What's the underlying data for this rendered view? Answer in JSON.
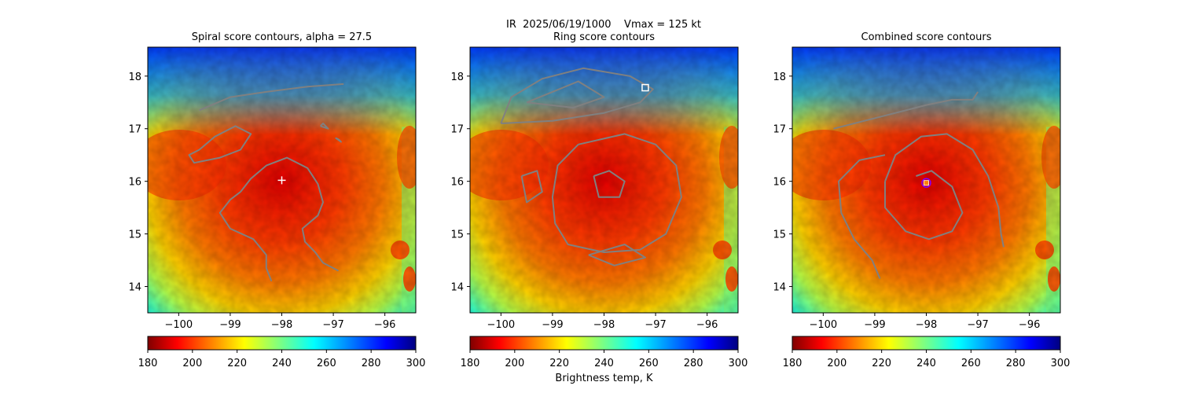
{
  "suptitle": "IR  2025/06/19/1000    Vmax = 125 kt",
  "colors": {
    "contour": "#808080",
    "cross": "#ffffff",
    "ring_marker": "#ffffff",
    "combined_marker_ring": "#8000ff",
    "combined_marker_fill": "#ff8000"
  },
  "chart_data": [
    {
      "type": "heatmap",
      "title": "Spiral score contours, alpha = 27.5",
      "xlim": [
        -100.6,
        -95.4
      ],
      "ylim": [
        13.5,
        18.55
      ],
      "xticks": [
        -100,
        -99,
        -98,
        -97,
        -96
      ],
      "yticks": [
        14,
        15,
        16,
        17,
        18
      ],
      "colorbar": {
        "range": [
          180,
          300
        ],
        "ticks": [
          180,
          200,
          220,
          240,
          260,
          280,
          300
        ],
        "label": ""
      },
      "center_marker": {
        "shape": "plus",
        "x": -98.0,
        "y": 16.02
      },
      "contours": [
        [
          [
            -99.6,
            17.35
          ],
          [
            -99.0,
            17.6
          ],
          [
            -98.3,
            17.7
          ],
          [
            -97.5,
            17.8
          ],
          [
            -96.8,
            17.85
          ]
        ],
        [
          [
            -99.6,
            16.6
          ],
          [
            -99.3,
            16.85
          ],
          [
            -98.9,
            17.05
          ],
          [
            -98.6,
            16.9
          ],
          [
            -98.8,
            16.6
          ],
          [
            -99.2,
            16.45
          ],
          [
            -99.7,
            16.35
          ],
          [
            -99.8,
            16.5
          ],
          [
            -99.6,
            16.6
          ]
        ],
        [
          [
            -98.8,
            15.8
          ],
          [
            -98.6,
            16.05
          ],
          [
            -98.3,
            16.3
          ],
          [
            -97.9,
            16.45
          ],
          [
            -97.5,
            16.25
          ],
          [
            -97.3,
            15.95
          ],
          [
            -97.2,
            15.6
          ],
          [
            -97.3,
            15.35
          ],
          [
            -97.6,
            15.1
          ],
          [
            -97.55,
            14.85
          ],
          [
            -97.35,
            14.65
          ],
          [
            -97.2,
            14.45
          ],
          [
            -96.9,
            14.3
          ]
        ],
        [
          [
            -98.8,
            15.8
          ],
          [
            -99.0,
            15.65
          ],
          [
            -99.2,
            15.4
          ],
          [
            -99.0,
            15.1
          ],
          [
            -98.55,
            14.9
          ],
          [
            -98.3,
            14.6
          ],
          [
            -98.3,
            14.35
          ],
          [
            -98.2,
            14.1
          ]
        ],
        [
          [
            -97.25,
            17.05
          ],
          [
            -97.1,
            17.0
          ],
          [
            -97.2,
            17.1
          ],
          [
            -97.25,
            17.05
          ]
        ],
        [
          [
            -96.9,
            16.8
          ],
          [
            -96.85,
            16.75
          ],
          [
            -96.95,
            16.82
          ],
          [
            -96.9,
            16.8
          ]
        ]
      ]
    },
    {
      "type": "heatmap",
      "title": "Ring score contours",
      "xlim": [
        -100.6,
        -95.4
      ],
      "ylim": [
        13.5,
        18.55
      ],
      "xticks": [
        -100,
        -99,
        -98,
        -97,
        -96
      ],
      "yticks": [
        14,
        15,
        16,
        17,
        18
      ],
      "colorbar": {
        "range": [
          180,
          300
        ],
        "ticks": [
          180,
          200,
          220,
          240,
          260,
          280,
          300
        ],
        "label": "Brightness temp, K"
      },
      "center_marker": {
        "shape": "square",
        "x": -97.2,
        "y": 17.78
      },
      "contours": [
        [
          [
            -100.0,
            17.1
          ],
          [
            -99.8,
            17.6
          ],
          [
            -99.2,
            17.95
          ],
          [
            -98.4,
            18.15
          ],
          [
            -97.5,
            18.0
          ],
          [
            -97.05,
            17.75
          ],
          [
            -97.3,
            17.5
          ],
          [
            -98.0,
            17.3
          ],
          [
            -99.0,
            17.15
          ],
          [
            -100.0,
            17.1
          ]
        ],
        [
          [
            -99.5,
            17.5
          ],
          [
            -99.0,
            17.7
          ],
          [
            -98.5,
            17.9
          ],
          [
            -98.0,
            17.6
          ],
          [
            -98.6,
            17.4
          ],
          [
            -99.5,
            17.5
          ]
        ],
        [
          [
            -98.5,
            16.7
          ],
          [
            -97.6,
            16.9
          ],
          [
            -97.0,
            16.7
          ],
          [
            -96.6,
            16.3
          ],
          [
            -96.5,
            15.7
          ],
          [
            -96.8,
            15.0
          ],
          [
            -97.3,
            14.7
          ],
          [
            -98.0,
            14.65
          ],
          [
            -98.7,
            14.8
          ],
          [
            -98.95,
            15.2
          ],
          [
            -99.0,
            15.7
          ],
          [
            -98.9,
            16.3
          ],
          [
            -98.5,
            16.7
          ]
        ],
        [
          [
            -98.2,
            16.1
          ],
          [
            -97.9,
            16.2
          ],
          [
            -97.6,
            16.0
          ],
          [
            -97.7,
            15.7
          ],
          [
            -98.1,
            15.7
          ],
          [
            -98.2,
            16.1
          ]
        ],
        [
          [
            -99.6,
            16.1
          ],
          [
            -99.3,
            16.2
          ],
          [
            -99.2,
            15.8
          ],
          [
            -99.5,
            15.6
          ],
          [
            -99.6,
            16.1
          ]
        ],
        [
          [
            -98.3,
            14.6
          ],
          [
            -97.6,
            14.8
          ],
          [
            -97.2,
            14.55
          ],
          [
            -97.8,
            14.4
          ],
          [
            -98.3,
            14.6
          ]
        ]
      ]
    },
    {
      "type": "heatmap",
      "title": "Combined score contours",
      "xlim": [
        -100.6,
        -95.4
      ],
      "ylim": [
        13.5,
        18.55
      ],
      "xticks": [
        -100,
        -99,
        -98,
        -97,
        -96
      ],
      "yticks": [
        14,
        15,
        16,
        17,
        18
      ],
      "colorbar": {
        "range": [
          180,
          300
        ],
        "ticks": [
          180,
          200,
          220,
          240,
          260,
          280,
          300
        ],
        "label": ""
      },
      "center_marker": {
        "shape": "circle",
        "x": -98.0,
        "y": 15.97
      },
      "contours": [
        [
          [
            -99.8,
            17.0
          ],
          [
            -99.2,
            17.15
          ],
          [
            -98.6,
            17.3
          ],
          [
            -98.0,
            17.45
          ],
          [
            -97.5,
            17.55
          ],
          [
            -97.1,
            17.55
          ],
          [
            -97.0,
            17.7
          ]
        ],
        [
          [
            -98.8,
            16.0
          ],
          [
            -98.6,
            16.5
          ],
          [
            -98.1,
            16.85
          ],
          [
            -97.6,
            16.9
          ],
          [
            -97.1,
            16.6
          ],
          [
            -96.8,
            16.1
          ],
          [
            -96.6,
            15.5
          ],
          [
            -96.55,
            15.0
          ],
          [
            -96.5,
            14.75
          ]
        ],
        [
          [
            -98.8,
            16.0
          ],
          [
            -98.8,
            15.5
          ],
          [
            -98.4,
            15.05
          ],
          [
            -97.95,
            14.9
          ],
          [
            -97.5,
            15.05
          ],
          [
            -97.3,
            15.4
          ],
          [
            -97.5,
            15.9
          ],
          [
            -97.9,
            16.2
          ],
          [
            -98.2,
            16.1
          ]
        ],
        [
          [
            -98.8,
            16.5
          ],
          [
            -99.3,
            16.4
          ],
          [
            -99.7,
            16.0
          ],
          [
            -99.65,
            15.4
          ],
          [
            -99.4,
            14.9
          ],
          [
            -99.05,
            14.5
          ],
          [
            -98.9,
            14.15
          ]
        ]
      ]
    }
  ]
}
